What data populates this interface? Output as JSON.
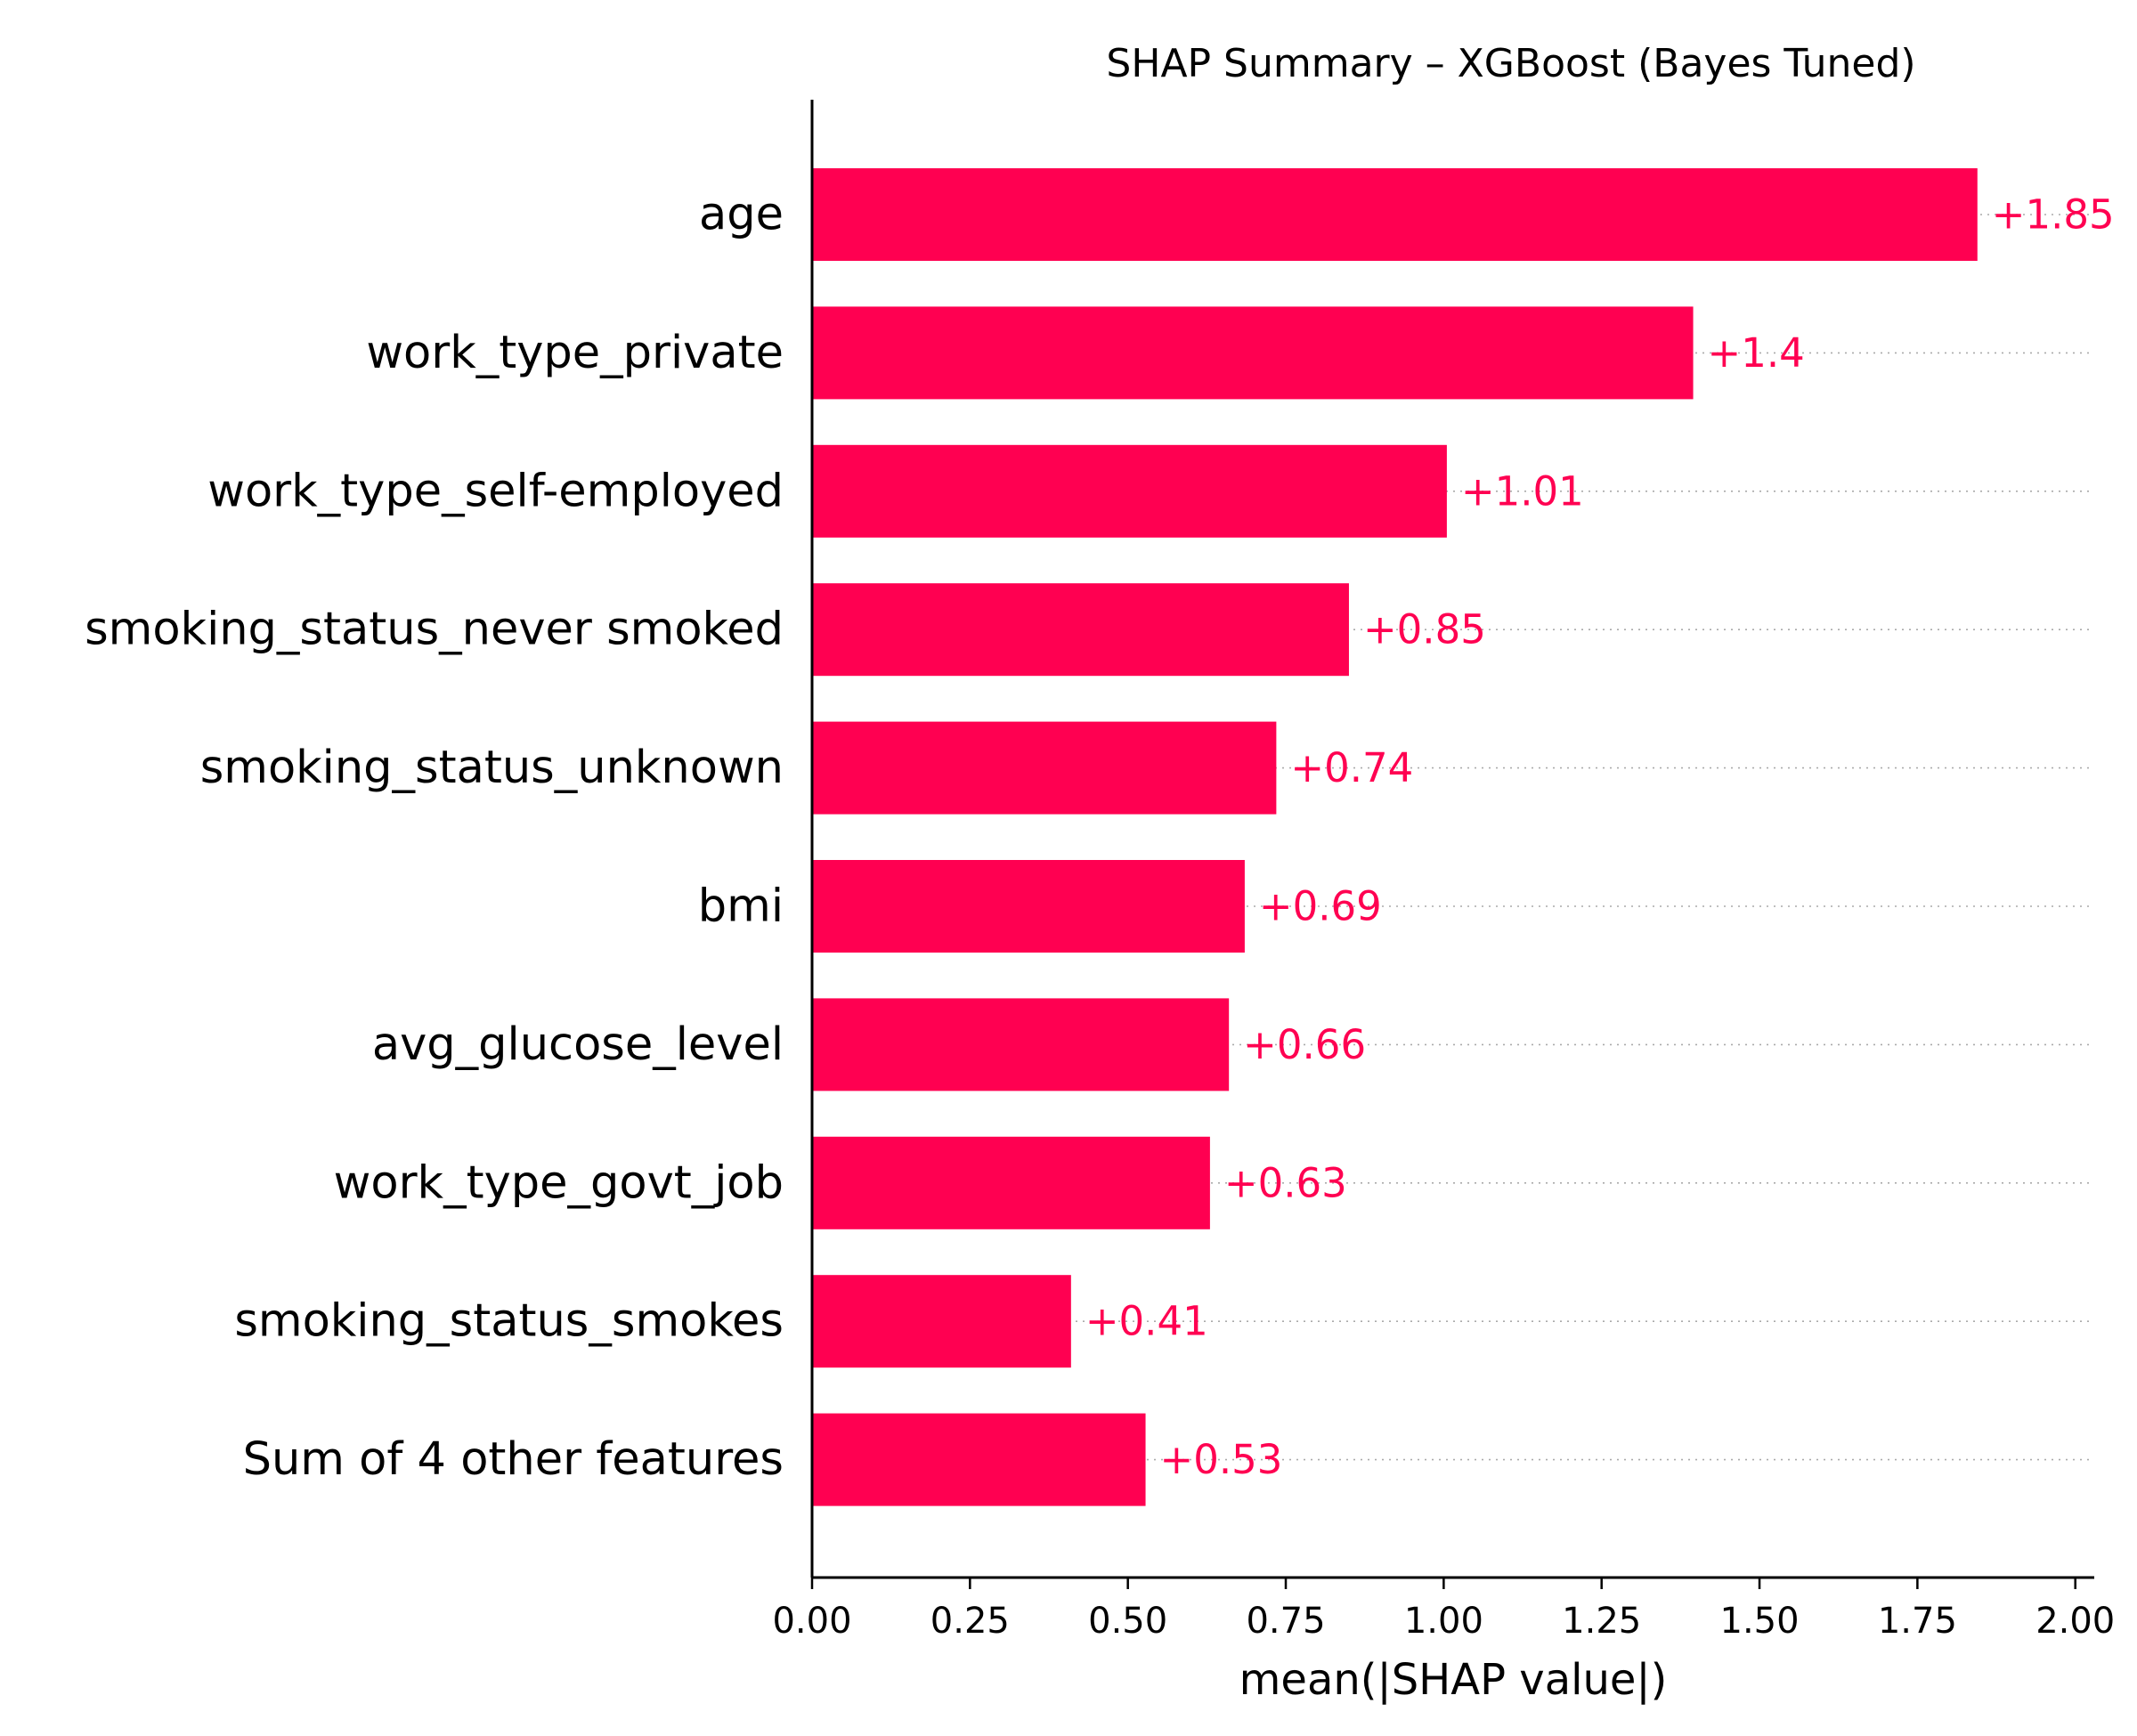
{
  "chart_data": {
    "type": "bar",
    "orientation": "horizontal",
    "title": "SHAP Summary – XGBoost (Bayes Tuned)",
    "xlabel": "mean(|SHAP value|)",
    "ylabel": "",
    "xlim": [
      0,
      2.03
    ],
    "xticks": [
      0.0,
      0.25,
      0.5,
      0.75,
      1.0,
      1.25,
      1.5,
      1.75,
      2.0
    ],
    "xtick_labels": [
      "0.00",
      "0.25",
      "0.50",
      "0.75",
      "1.00",
      "1.25",
      "1.50",
      "1.75",
      "2.00"
    ],
    "categories": [
      "age",
      "work_type_private",
      "work_type_self-employed",
      "smoking_status_never smoked",
      "smoking_status_unknown",
      "bmi",
      "avg_glucose_level",
      "work_type_govt_job",
      "smoking_status_smokes",
      "Sum of 4 other features"
    ],
    "values": [
      1.845,
      1.395,
      1.005,
      0.85,
      0.735,
      0.685,
      0.66,
      0.63,
      0.41,
      0.528
    ],
    "value_labels": [
      "+1.85",
      "+1.4",
      "+1.01",
      "+0.85",
      "+0.74",
      "+0.69",
      "+0.66",
      "+0.63",
      "+0.41",
      "+0.53"
    ],
    "bar_color": "#ff0051",
    "label_color": "#ff0051",
    "grid": false,
    "legend": "none"
  }
}
